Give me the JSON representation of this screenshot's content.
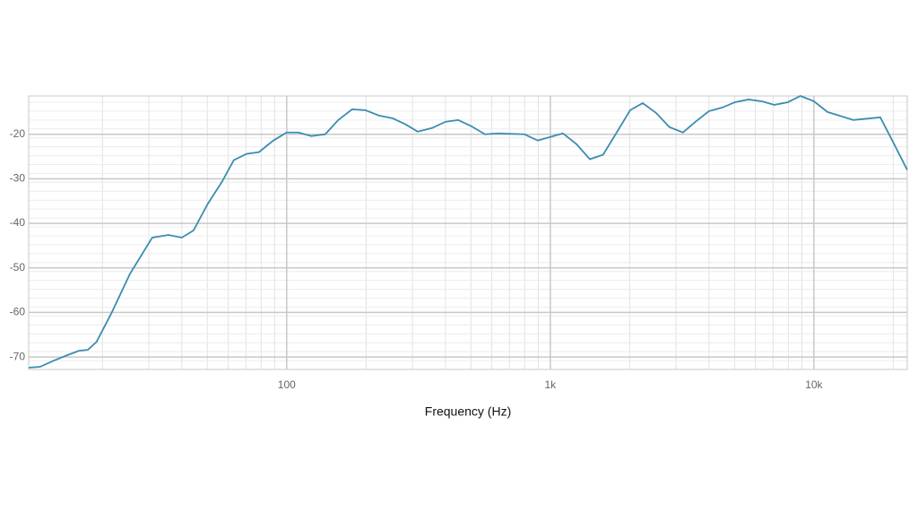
{
  "chart_data": {
    "type": "line",
    "x_label": "Frequency (Hz)",
    "x_log": true,
    "grid": true,
    "xlim": [
      10.5,
      22600
    ],
    "ylim": [
      -72.8,
      -11.4
    ],
    "xticks": [
      100,
      {
        "value": 1000,
        "label": "1k"
      },
      {
        "value": 10000,
        "label": "10k"
      }
    ],
    "yticks": [
      -70,
      -60,
      -50,
      -40,
      -30,
      -20
    ],
    "x": [
      10.5,
      11.6,
      13.1,
      14.7,
      16.3,
      17.6,
      19,
      21.7,
      25.4,
      30.9,
      35.6,
      40,
      44.3,
      50.2,
      56.9,
      63,
      70.4,
      78.5,
      89,
      100,
      110.7,
      124,
      140,
      157,
      177,
      199,
      224,
      252,
      283,
      314,
      356,
      400,
      447,
      502,
      565,
      635,
      797,
      896,
      1000,
      1116,
      1256,
      1413,
      1585,
      1786,
      2009,
      2241,
      2518,
      2831,
      3184,
      3554,
      4000,
      4496,
      5020,
      5650,
      6350,
      7080,
      7970,
      8890,
      10000,
      11260,
      14120,
      17860,
      19910,
      22590
    ],
    "series": [
      {
        "color": "#3b8db0",
        "values": [
          -72.4,
          -72.2,
          -70.8,
          -69.6,
          -68.6,
          -68.4,
          -66.6,
          -60,
          -51.4,
          -43.2,
          -42.6,
          -43.2,
          -41.6,
          -35.6,
          -30.6,
          -25.8,
          -24.4,
          -24,
          -21.4,
          -19.6,
          -19.6,
          -20.4,
          -20,
          -16.8,
          -14.4,
          -14.6,
          -15.8,
          -16.4,
          -17.8,
          -19.4,
          -18.6,
          -17.2,
          -16.8,
          -18.2,
          -20,
          -19.8,
          -20,
          -21.4,
          -20.6,
          -19.8,
          -22.2,
          -25.6,
          -24.6,
          -19.6,
          -14.6,
          -13,
          -15.2,
          -18.4,
          -19.6,
          -17.2,
          -14.8,
          -14,
          -12.8,
          -12.2,
          -12.6,
          -13.4,
          -12.8,
          -11.4,
          -12.6,
          -15,
          -16.8,
          -16.2,
          -21.6,
          -28
        ]
      }
    ]
  }
}
